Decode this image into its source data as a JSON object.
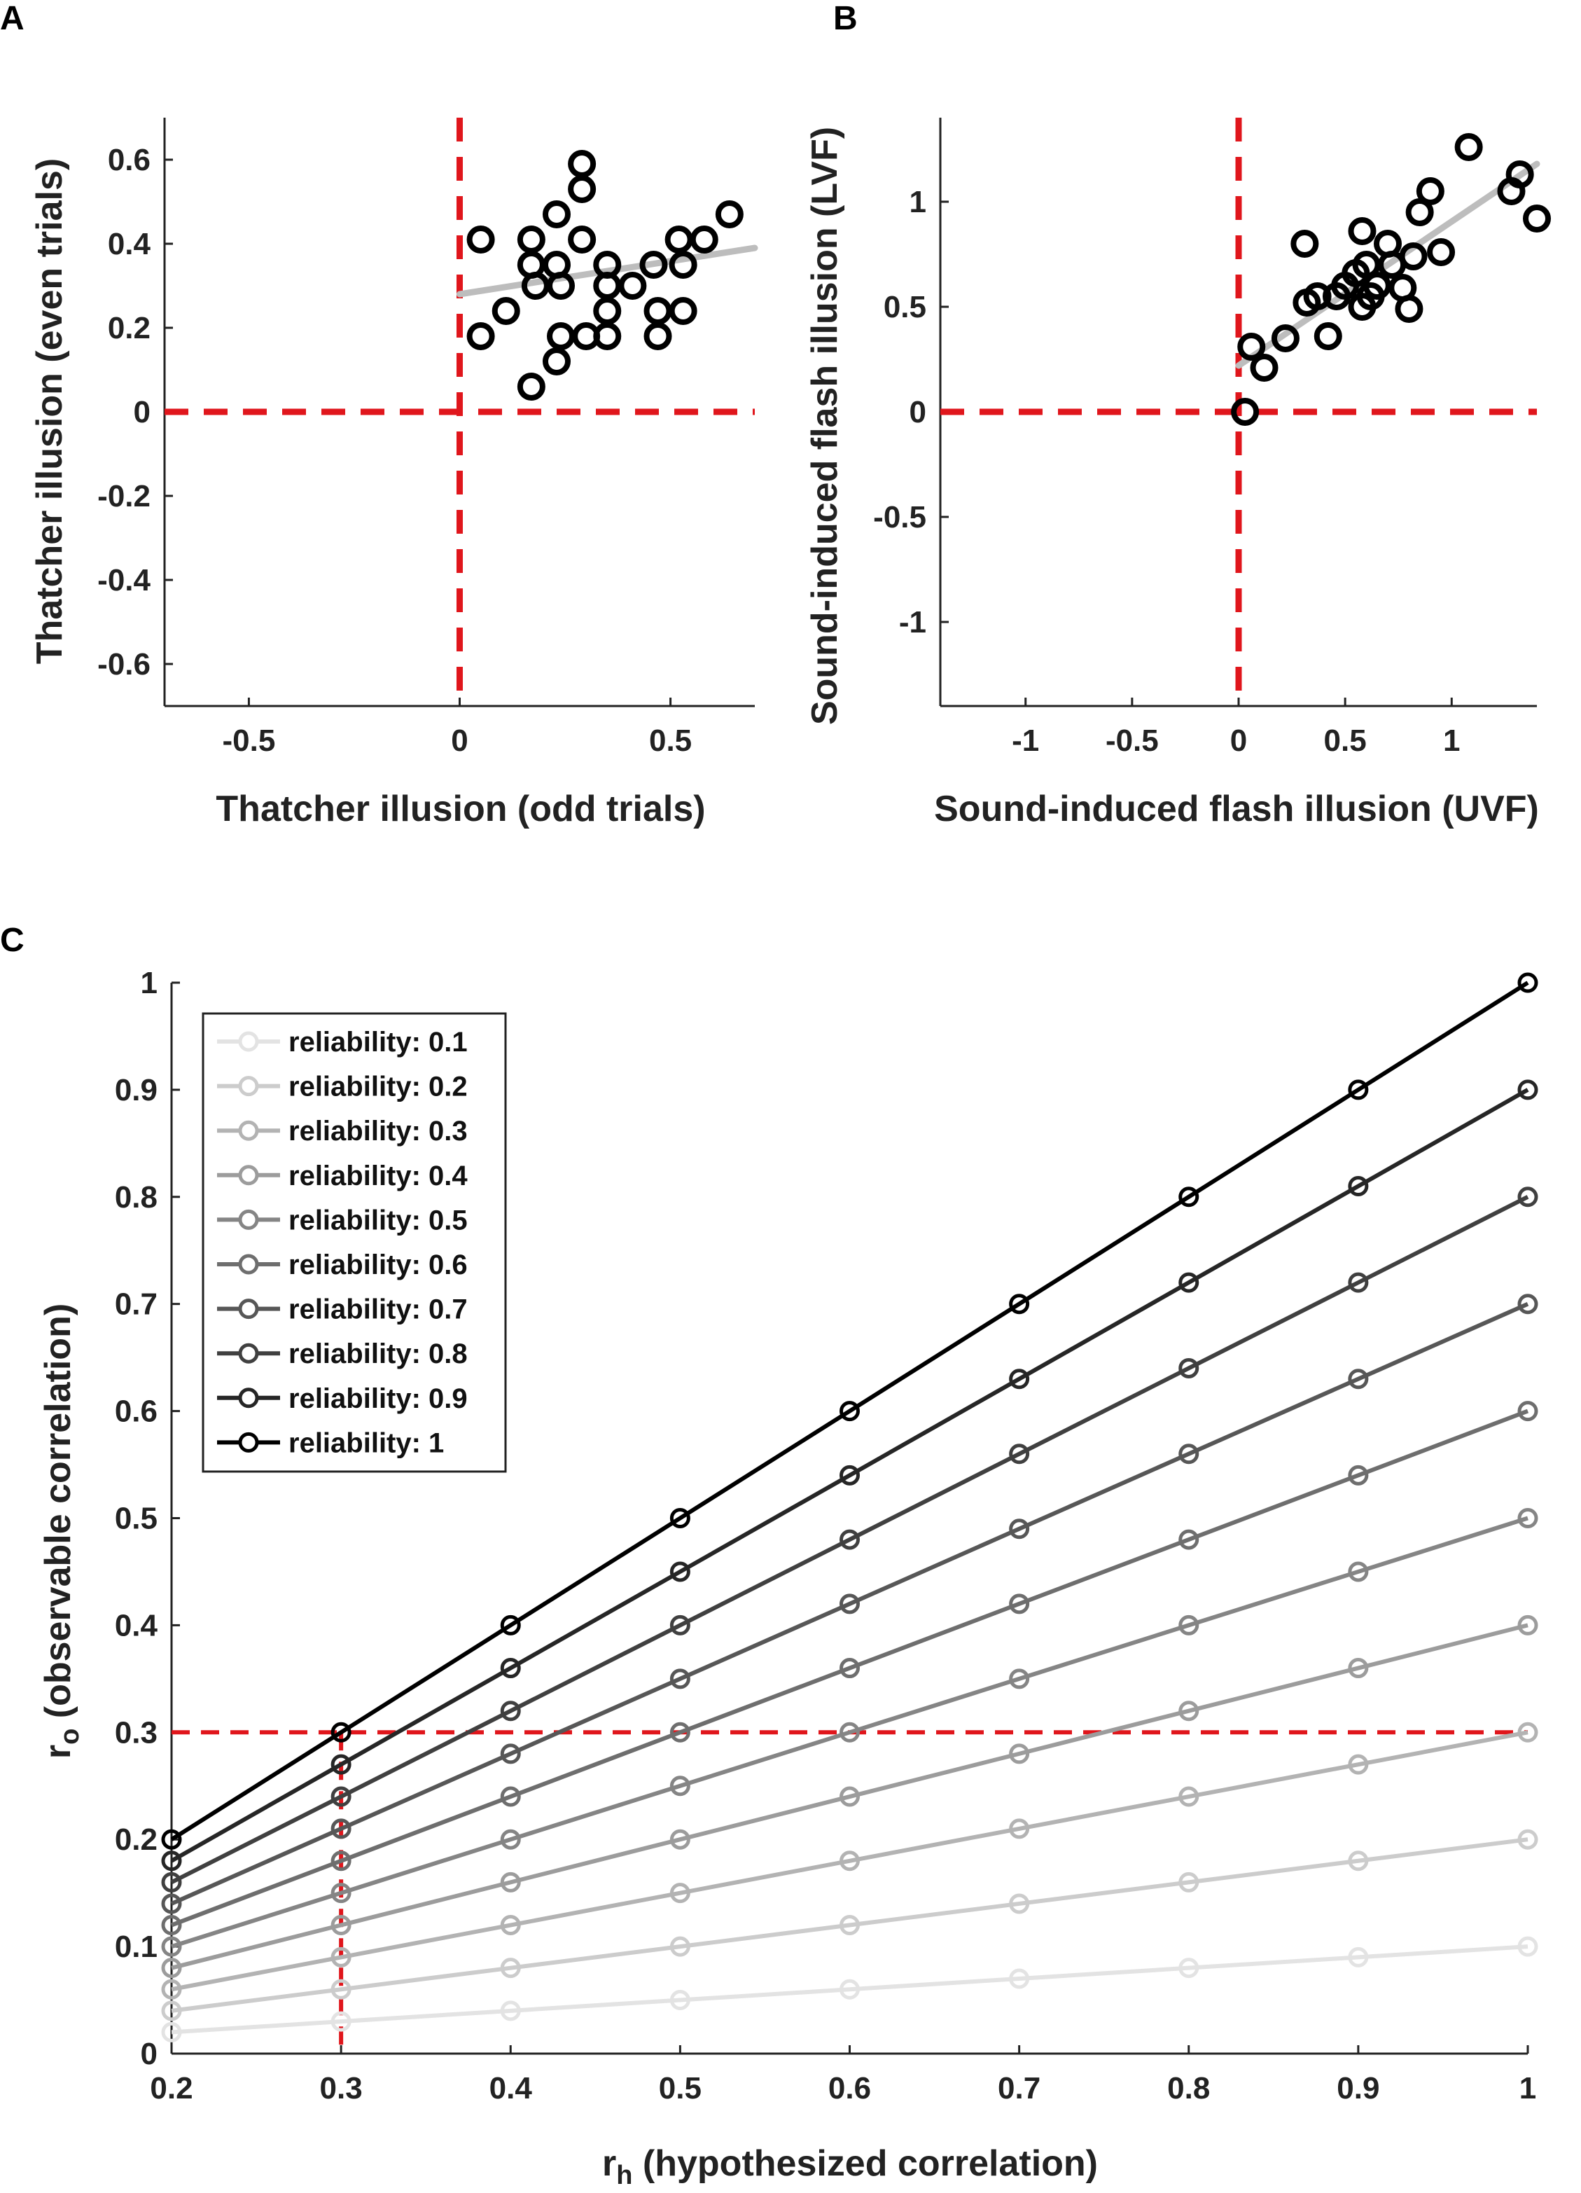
{
  "chart_data": [
    {
      "panel_label": "A",
      "type": "scatter",
      "xlabel": "Thatcher illusion (odd trials)",
      "ylabel": "Thatcher illusion (even trials)",
      "xlim": [
        -0.7,
        0.7
      ],
      "ylim": [
        -0.7,
        0.7
      ],
      "xticks": [
        "-0.5",
        "0",
        "0.5"
      ],
      "yticks": [
        "0.6",
        "0.4",
        "0.2",
        "0",
        "-0.2",
        "-0.4",
        "-0.6"
      ],
      "xtick_values": [
        -0.5,
        0,
        0.5
      ],
      "ytick_values": [
        0.6,
        0.4,
        0.2,
        0,
        -0.2,
        -0.4,
        -0.6
      ],
      "reference_lines": {
        "x": 0,
        "y": 0,
        "color": "#e0161c"
      },
      "fit_line": {
        "x": [
          0,
          0.7
        ],
        "y": [
          0.28,
          0.39
        ],
        "color": "#bdbdbd"
      },
      "points": [
        [
          0.05,
          0.41
        ],
        [
          0.05,
          0.18
        ],
        [
          0.11,
          0.24
        ],
        [
          0.17,
          0.41
        ],
        [
          0.17,
          0.35
        ],
        [
          0.17,
          0.06
        ],
        [
          0.18,
          0.3
        ],
        [
          0.23,
          0.47
        ],
        [
          0.23,
          0.35
        ],
        [
          0.23,
          0.12
        ],
        [
          0.24,
          0.3
        ],
        [
          0.24,
          0.18
        ],
        [
          0.29,
          0.59
        ],
        [
          0.29,
          0.53
        ],
        [
          0.29,
          0.41
        ],
        [
          0.3,
          0.18
        ],
        [
          0.35,
          0.35
        ],
        [
          0.35,
          0.24
        ],
        [
          0.35,
          0.3
        ],
        [
          0.35,
          0.18
        ],
        [
          0.41,
          0.3
        ],
        [
          0.46,
          0.35
        ],
        [
          0.47,
          0.24
        ],
        [
          0.47,
          0.18
        ],
        [
          0.52,
          0.41
        ],
        [
          0.53,
          0.24
        ],
        [
          0.53,
          0.35
        ],
        [
          0.58,
          0.41
        ],
        [
          0.64,
          0.47
        ]
      ]
    },
    {
      "panel_label": "B",
      "type": "scatter",
      "xlabel": "Sound-induced flash illusion (UVF)",
      "ylabel": "Sound-induced flash illusion (LVF)",
      "xlim": [
        -1.4,
        1.4
      ],
      "ylim": [
        -1.4,
        1.4
      ],
      "xticks": [
        "-1",
        "-0.5",
        "0",
        "0.5",
        "1"
      ],
      "yticks": [
        "1",
        "0.5",
        "0",
        "-0.5",
        "-1"
      ],
      "xtick_values": [
        -1,
        -0.5,
        0,
        0.5,
        1
      ],
      "ytick_values": [
        1,
        0.5,
        0,
        -0.5,
        -1
      ],
      "reference_lines": {
        "x": 0,
        "y": 0,
        "color": "#e0161c"
      },
      "fit_line": {
        "x": [
          0,
          1.4
        ],
        "y": [
          0.22,
          1.18
        ],
        "color": "#bdbdbd"
      },
      "points": [
        [
          0.03,
          0.0
        ],
        [
          0.06,
          0.31
        ],
        [
          0.12,
          0.21
        ],
        [
          0.22,
          0.35
        ],
        [
          0.31,
          0.8
        ],
        [
          0.32,
          0.52
        ],
        [
          0.37,
          0.55
        ],
        [
          0.42,
          0.36
        ],
        [
          0.46,
          0.55
        ],
        [
          0.5,
          0.6
        ],
        [
          0.55,
          0.66
        ],
        [
          0.58,
          0.86
        ],
        [
          0.58,
          0.5
        ],
        [
          0.6,
          0.7
        ],
        [
          0.62,
          0.55
        ],
        [
          0.65,
          0.6
        ],
        [
          0.7,
          0.8
        ],
        [
          0.72,
          0.7
        ],
        [
          0.77,
          0.59
        ],
        [
          0.8,
          0.49
        ],
        [
          0.82,
          0.74
        ],
        [
          0.85,
          0.95
        ],
        [
          0.9,
          1.05
        ],
        [
          0.95,
          0.76
        ],
        [
          1.08,
          1.26
        ],
        [
          1.28,
          1.05
        ],
        [
          1.32,
          1.13
        ],
        [
          1.4,
          0.92
        ]
      ]
    },
    {
      "panel_label": "C",
      "type": "line",
      "xlabel": "r_h (hypothesized correlation)",
      "xlabel_main": "r",
      "xlabel_sub": "h",
      "xlabel_rest": " (hypothesized correlation)",
      "ylabel": "r_o (observable correlation)",
      "ylabel_main": "r",
      "ylabel_sub": "o",
      "ylabel_rest": " (observable correlation)",
      "xlim": [
        0.2,
        1.0
      ],
      "ylim": [
        0,
        1.0
      ],
      "xticks": [
        "0.2",
        "0.3",
        "0.4",
        "0.5",
        "0.6",
        "0.7",
        "0.8",
        "0.9",
        "1"
      ],
      "yticks": [
        "1",
        "0.9",
        "0.8",
        "0.7",
        "0.6",
        "0.5",
        "0.4",
        "0.3",
        "0.2",
        "0.1",
        "0"
      ],
      "xtick_values": [
        0.2,
        0.3,
        0.4,
        0.5,
        0.6,
        0.7,
        0.8,
        0.9,
        1.0
      ],
      "ytick_values": [
        1,
        0.9,
        0.8,
        0.7,
        0.6,
        0.5,
        0.4,
        0.3,
        0.2,
        0.1,
        0
      ],
      "reference_lines": {
        "x": 0.3,
        "y": 0.3,
        "color": "#e0161c"
      },
      "legend_position": "top-left",
      "x": [
        0.2,
        0.3,
        0.4,
        0.5,
        0.6,
        0.7,
        0.8,
        0.9,
        1.0
      ],
      "series": [
        {
          "name": "reliability: 0.1",
          "color": "#e3e3e3",
          "values": [
            0.02,
            0.03,
            0.04,
            0.05,
            0.06,
            0.07,
            0.08,
            0.09,
            0.1
          ]
        },
        {
          "name": "reliability: 0.2",
          "color": "#cccccc",
          "values": [
            0.04,
            0.06,
            0.08,
            0.1,
            0.12,
            0.14,
            0.16,
            0.18,
            0.2
          ]
        },
        {
          "name": "reliability: 0.3",
          "color": "#b3b3b3",
          "values": [
            0.06,
            0.09,
            0.12,
            0.15,
            0.18,
            0.21,
            0.24,
            0.27,
            0.3
          ]
        },
        {
          "name": "reliability: 0.4",
          "color": "#9c9c9c",
          "values": [
            0.08,
            0.12,
            0.16,
            0.2,
            0.24,
            0.28,
            0.32,
            0.36,
            0.4
          ]
        },
        {
          "name": "reliability: 0.5",
          "color": "#858585",
          "values": [
            0.1,
            0.15,
            0.2,
            0.25,
            0.3,
            0.35,
            0.4,
            0.45,
            0.5
          ]
        },
        {
          "name": "reliability: 0.6",
          "color": "#6e6e6e",
          "values": [
            0.12,
            0.18,
            0.24,
            0.3,
            0.36,
            0.42,
            0.48,
            0.54,
            0.6
          ]
        },
        {
          "name": "reliability: 0.7",
          "color": "#575757",
          "values": [
            0.14,
            0.21,
            0.28,
            0.35,
            0.42,
            0.49,
            0.56,
            0.63,
            0.7
          ]
        },
        {
          "name": "reliability: 0.8",
          "color": "#404040",
          "values": [
            0.16,
            0.24,
            0.32,
            0.4,
            0.48,
            0.56,
            0.64,
            0.72,
            0.8
          ]
        },
        {
          "name": "reliability: 0.9",
          "color": "#262626",
          "values": [
            0.18,
            0.27,
            0.36,
            0.45,
            0.54,
            0.63,
            0.72,
            0.81,
            0.9
          ]
        },
        {
          "name": "reliability: 1",
          "color": "#000000",
          "values": [
            0.2,
            0.3,
            0.4,
            0.5,
            0.6,
            0.7,
            0.8,
            0.9,
            1.0
          ]
        }
      ]
    }
  ]
}
